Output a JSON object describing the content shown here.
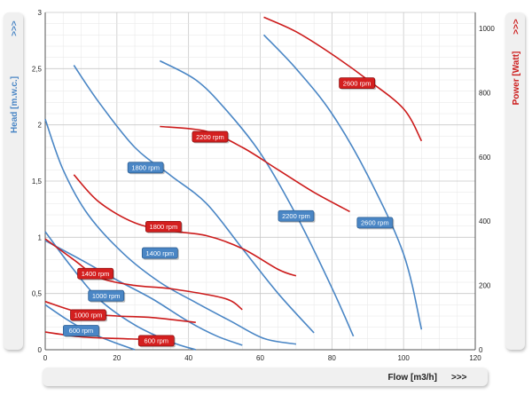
{
  "chart_data": {
    "type": "line",
    "xlabel": "Flow [m3/h]",
    "xlabel_arrow": ">>>",
    "ylabel_left": "Head [m.w.c.]",
    "ylabel_left_arrow": ">>>",
    "ylabel_right": "Power [Watt]",
    "ylabel_right_arrow": ">>>",
    "xlim": [
      0,
      120
    ],
    "ylim_left": [
      0,
      3
    ],
    "ylim_right": [
      0,
      1050
    ],
    "x_ticks": [
      "0",
      "20",
      "40",
      "60",
      "80",
      "100",
      "120"
    ],
    "y_left_ticks": [
      "0",
      "0,5",
      "1",
      "1,5",
      "2",
      "2,5",
      "3"
    ],
    "y_right_ticks": [
      "0",
      "200",
      "400",
      "600",
      "800",
      "1000"
    ],
    "grid": true,
    "colors": {
      "head": "#4a86c5",
      "power": "#cc1b1b"
    },
    "head_series": [
      {
        "name": "600 rpm",
        "points": [
          [
            0,
            0.4
          ],
          [
            6,
            0.27
          ],
          [
            12,
            0.16
          ],
          [
            18,
            0.08
          ],
          [
            25,
            0.0
          ]
        ]
      },
      {
        "name": "1000 rpm",
        "points": [
          [
            0,
            1.05
          ],
          [
            7,
            0.75
          ],
          [
            15,
            0.45
          ],
          [
            25,
            0.22
          ],
          [
            35,
            0.07
          ],
          [
            42,
            0.0
          ]
        ]
      },
      {
        "name": "1400 rpm",
        "points": [
          [
            0,
            0.97
          ],
          [
            10,
            0.8
          ],
          [
            20,
            0.62
          ],
          [
            30,
            0.45
          ],
          [
            40,
            0.25
          ],
          [
            48,
            0.12
          ],
          [
            55,
            0.04
          ]
        ]
      },
      {
        "name": "1800 rpm",
        "points": [
          [
            0,
            2.05
          ],
          [
            5,
            1.6
          ],
          [
            12,
            1.2
          ],
          [
            22,
            0.85
          ],
          [
            32,
            0.6
          ],
          [
            42,
            0.42
          ],
          [
            52,
            0.25
          ],
          [
            61,
            0.1
          ],
          [
            70,
            0.05
          ]
        ]
      },
      {
        "name": "1800 rpm upper",
        "points": [
          [
            8,
            2.53
          ],
          [
            15,
            2.2
          ],
          [
            25,
            1.8
          ],
          [
            35,
            1.55
          ],
          [
            45,
            1.3
          ],
          [
            55,
            0.9
          ],
          [
            65,
            0.5
          ],
          [
            75,
            0.15
          ]
        ]
      },
      {
        "name": "2200 rpm",
        "points": [
          [
            32,
            2.57
          ],
          [
            42,
            2.4
          ],
          [
            50,
            2.15
          ],
          [
            60,
            1.75
          ],
          [
            70,
            1.2
          ],
          [
            80,
            0.55
          ],
          [
            86,
            0.12
          ]
        ]
      },
      {
        "name": "2600 rpm",
        "points": [
          [
            61,
            2.8
          ],
          [
            70,
            2.5
          ],
          [
            80,
            2.1
          ],
          [
            90,
            1.55
          ],
          [
            100,
            0.85
          ],
          [
            105,
            0.18
          ]
        ]
      }
    ],
    "power_series": [
      {
        "name": "600 rpm",
        "points": [
          [
            0,
            55
          ],
          [
            10,
            40
          ],
          [
            20,
            35
          ],
          [
            26,
            33
          ]
        ]
      },
      {
        "name": "1000 rpm",
        "points": [
          [
            0,
            150
          ],
          [
            10,
            115
          ],
          [
            20,
            105
          ],
          [
            30,
            100
          ],
          [
            42,
            85
          ]
        ]
      },
      {
        "name": "1400 rpm",
        "points": [
          [
            0,
            345
          ],
          [
            8,
            280
          ],
          [
            15,
            225
          ],
          [
            25,
            200
          ],
          [
            35,
            190
          ],
          [
            50,
            160
          ],
          [
            55,
            125
          ]
        ]
      },
      {
        "name": "1800 rpm",
        "points": [
          [
            8,
            545
          ],
          [
            15,
            460
          ],
          [
            25,
            395
          ],
          [
            35,
            370
          ],
          [
            45,
            355
          ],
          [
            55,
            315
          ],
          [
            65,
            250
          ],
          [
            70,
            230
          ]
        ]
      },
      {
        "name": "2200 rpm",
        "points": [
          [
            32,
            695
          ],
          [
            45,
            680
          ],
          [
            55,
            630
          ],
          [
            65,
            560
          ],
          [
            75,
            490
          ],
          [
            85,
            430
          ]
        ]
      },
      {
        "name": "2600 rpm",
        "points": [
          [
            61,
            1035
          ],
          [
            70,
            990
          ],
          [
            80,
            920
          ],
          [
            90,
            840
          ],
          [
            100,
            750
          ],
          [
            105,
            650
          ]
        ]
      }
    ],
    "head_labels": [
      {
        "text": "600 rpm",
        "x": 10,
        "y": 0.17
      },
      {
        "text": "1000 rpm",
        "x": 17,
        "y": 0.48
      },
      {
        "text": "1400 rpm",
        "x": 32,
        "y": 0.86
      },
      {
        "text": "1800 rpm",
        "x": 28,
        "y": 1.62
      },
      {
        "text": "2200 rpm",
        "x": 70,
        "y": 1.19
      },
      {
        "text": "2600 rpm",
        "x": 92,
        "y": 1.13
      }
    ],
    "power_labels": [
      {
        "text": "600 rpm",
        "x": 31,
        "y": 28
      },
      {
        "text": "1000 rpm",
        "x": 12,
        "y": 108
      },
      {
        "text": "1400 rpm",
        "x": 14,
        "y": 237
      },
      {
        "text": "1800 rpm",
        "x": 33,
        "y": 383
      },
      {
        "text": "2200 rpm",
        "x": 46,
        "y": 663
      },
      {
        "text": "2600 rpm",
        "x": 87,
        "y": 830
      }
    ]
  }
}
